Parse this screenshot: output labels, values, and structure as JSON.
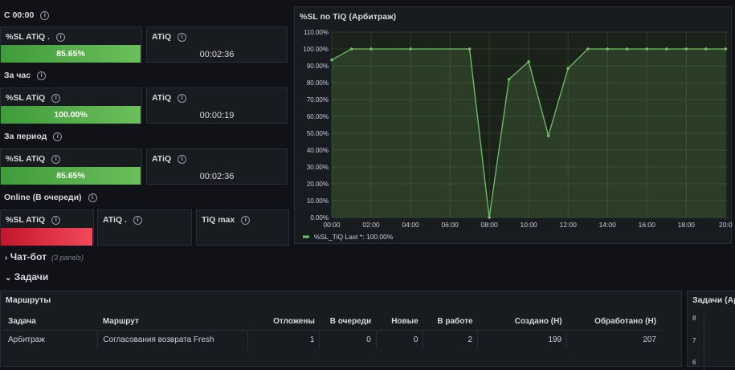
{
  "sections": {
    "c0000": {
      "label": "С 00:00"
    },
    "hour": {
      "label": "За час"
    },
    "period": {
      "label": "За период"
    },
    "online": {
      "label": "Online (В очереди)"
    }
  },
  "panels": {
    "c0000_sl": {
      "title": "%SL ATiQ .",
      "value": "85.65%",
      "fraction": 0.8565
    },
    "c0000_atiq": {
      "title": "ATiQ",
      "value": "00:02:36"
    },
    "hour_sl": {
      "title": "%SL ATiQ",
      "value": "100.00%",
      "fraction": 1.0
    },
    "hour_atiq": {
      "title": "ATiQ",
      "value": "00:00:19"
    },
    "period_sl": {
      "title": "%SL ATiQ",
      "value": "85.65%",
      "fraction": 0.8565
    },
    "period_atiq": {
      "title": "ATiQ",
      "value": "00:02:36"
    },
    "online_sl": {
      "title": "%SL ATiQ",
      "color": "#e02f44"
    },
    "online_atiq": {
      "title": "ATiQ ."
    },
    "online_tiqmax": {
      "title": "TiQ max"
    }
  },
  "chart_panel": {
    "title": "%SL по TiQ (Арбитраж)"
  },
  "chart_data": {
    "type": "line",
    "title": "%SL по TiQ (Арбитраж)",
    "x": [
      "00:00",
      "01:00",
      "02:00",
      "04:00",
      "07:00",
      "08:00",
      "09:00",
      "10:00",
      "11:00",
      "12:00",
      "13:00",
      "14:00",
      "15:00",
      "16:00",
      "17:00",
      "18:00",
      "19:00",
      "20:00"
    ],
    "series": [
      {
        "name": "%SL_TiQ",
        "values": [
          93.5,
          100,
          100,
          100,
          100,
          0,
          82,
          92.5,
          48.5,
          88.5,
          100,
          100,
          100,
          100,
          100,
          100,
          100,
          100
        ],
        "color": "#73bf69"
      }
    ],
    "ylim": [
      0,
      110
    ],
    "yticks": [
      "0.00%",
      "10.00%",
      "20.00%",
      "30.00%",
      "40.00%",
      "50.00%",
      "60.00%",
      "70.00%",
      "80.00%",
      "90.00%",
      "100.00%",
      "110.00%"
    ],
    "xticks": [
      "00:00",
      "02:00",
      "04:00",
      "06:00",
      "08:00",
      "10:00",
      "12:00",
      "14:00",
      "16:00",
      "18:00",
      "20:0"
    ],
    "legend": "%SL_TiQ  Last *: 100.00%",
    "grid": true
  },
  "rows": {
    "chatbot": {
      "label": "Чат-бот",
      "hint": "(3 panels)"
    },
    "tasks": {
      "label": "Задачи"
    }
  },
  "routes_panel": {
    "title": "Маршруты",
    "columns": [
      "Задача",
      "Маршрут",
      "Отложены",
      "В очереди",
      "Новые",
      "В работе",
      "Создано (Н)",
      "Обработано (Н)"
    ],
    "rows": [
      [
        "Арбитраж",
        "Согласования возврата Fresh",
        "1",
        "0",
        "0",
        "2",
        "199",
        "207"
      ]
    ]
  },
  "tasks_panel": {
    "title": "Задачи (Ар",
    "yticks": [
      "8",
      "7",
      "6"
    ]
  }
}
